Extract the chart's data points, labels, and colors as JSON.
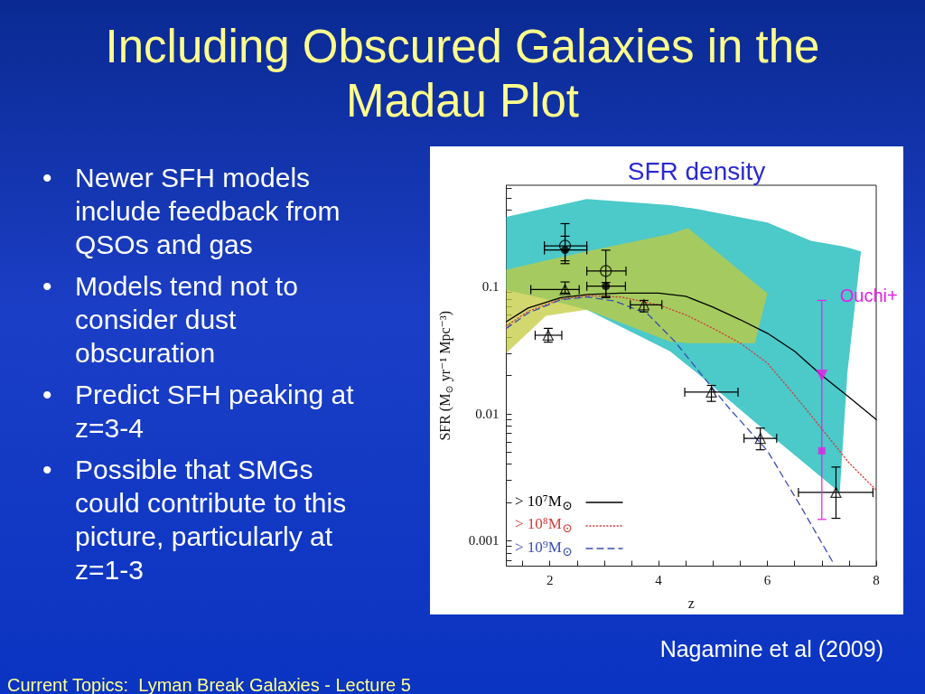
{
  "chart_data": {
    "type": "scatter",
    "title": "Including Obscured Galaxies in the Madau Plot",
    "subtitle": "SFR density",
    "xlabel": "z",
    "ylabel": "SFR (M$_{⊙}$ yr⁻¹ Mpc⁻³)",
    "xlim": [
      1.2,
      8
    ],
    "xticks": [
      {
        "value": 1.5,
        "label": null
      },
      2,
      {
        "value": 2.5,
        "label": null
      },
      {
        "value": 3,
        "label": null
      },
      {
        "value": 3.5,
        "label": null
      },
      4,
      {
        "value": 4.5,
        "label": null
      },
      {
        "value": 5,
        "label": null
      },
      {
        "value": 5.5,
        "label": null
      },
      6,
      {
        "value": 6.5,
        "label": null
      },
      {
        "value": 7,
        "label": null
      },
      {
        "value": 7.5,
        "label": null
      },
      8
    ],
    "ylim": [
      0.00063,
      0.63
    ],
    "yticks": [
      {
        "value": 0.0007,
        "label": null
      },
      {
        "value": 0.0008,
        "label": null
      },
      {
        "value": 0.0009,
        "label": null
      },
      0.001,
      {
        "value": 0.002,
        "label": null
      },
      {
        "value": 0.003,
        "label": null
      },
      {
        "value": 0.004,
        "label": null
      },
      {
        "value": 0.005,
        "label": null
      },
      {
        "value": 0.006,
        "label": null
      },
      {
        "value": 0.007,
        "label": null
      },
      {
        "value": 0.008,
        "label": null
      },
      {
        "value": 0.009,
        "label": null
      },
      0.01,
      {
        "value": 0.02,
        "label": null
      },
      {
        "value": 0.03,
        "label": null
      },
      {
        "value": 0.04,
        "label": null
      },
      {
        "value": 0.05,
        "label": null
      },
      {
        "value": 0.06,
        "label": null
      },
      {
        "value": 0.07,
        "label": null
      },
      {
        "value": 0.08,
        "label": null
      },
      {
        "value": 0.09,
        "label": null
      },
      0.1,
      {
        "value": 0.2,
        "label": null
      },
      {
        "value": 0.3,
        "label": null
      },
      {
        "value": 0.4,
        "label": null
      },
      {
        "value": 0.5,
        "label": null
      },
      {
        "value": 0.6,
        "label": null
      }
    ],
    "log": "y",
    "legend": "bottom left",
    "series": [
      {
        "type": "line",
        "color": "#4cc9c9",
        "x": [
          1.2,
          1.93,
          2.68,
          4.21,
          4.7,
          6.0,
          6.8,
          7.33,
          7.47,
          7.72
        ],
        "values": [
          null,
          null,
          null,
          null,
          null,
          null,
          null,
          null,
          null,
          null
        ],
        "upper": [
          0.355,
          0.416,
          0.49,
          0.44,
          0.41,
          0.32,
          0.23,
          0.21,
          0.204,
          0.19
        ],
        "lower": [
          0.094,
          0.08,
          0.066,
          0.031,
          0.021,
          0.0071,
          0.0037,
          0.0024,
          0.021,
          0.19
        ]
      },
      {
        "type": "line",
        "color": "#c3cb3c",
        "x": [
          1.2,
          1.93,
          2.68,
          4.21,
          4.54,
          5.77,
          6.0
        ],
        "values": [
          null,
          null,
          null,
          null,
          null,
          null,
          null
        ],
        "upper": [
          0.136,
          0.161,
          0.19,
          0.26,
          0.29,
          0.107,
          0.089
        ],
        "lower": [
          0.03,
          0.059,
          0.066,
          0.037,
          0.036,
          0.036,
          0.089
        ]
      },
      {
        "type": "line",
        "name": "> 10⁷M$_{⊙}$",
        "color": "#000000",
        "line_style": "solid",
        "x": [
          1.2,
          1.6,
          2.2,
          2.7,
          3.3,
          4.0,
          4.5,
          5.0,
          5.5,
          6.0,
          6.5,
          7.0,
          7.5,
          8.0
        ],
        "values": [
          0.053,
          0.068,
          0.082,
          0.087,
          0.089,
          0.089,
          0.084,
          0.069,
          0.055,
          0.043,
          0.031,
          0.02,
          0.0135,
          0.009
        ]
      },
      {
        "type": "line",
        "name": "> 10⁸M$_{⊙}$",
        "color": "#d23c3c",
        "line_style": "dotted",
        "x": [
          1.2,
          1.6,
          2.2,
          2.7,
          3.3,
          4.0,
          4.5,
          5.0,
          5.5,
          6.0,
          6.5,
          7.0,
          7.5,
          8.0
        ],
        "values": [
          0.049,
          0.064,
          0.08,
          0.085,
          0.083,
          0.072,
          0.06,
          0.047,
          0.036,
          0.025,
          0.014,
          0.0076,
          0.0041,
          0.0025
        ]
      },
      {
        "type": "line",
        "name": "> 10⁹M$_{⊙}$",
        "color": "#3a4cb4",
        "line_style": "dashed",
        "x": [
          1.2,
          1.6,
          2.2,
          2.7,
          3.2,
          3.8,
          4.3,
          4.8,
          5.3,
          6.0,
          6.6,
          7.2
        ],
        "values": [
          0.047,
          0.062,
          0.079,
          0.083,
          0.077,
          0.061,
          0.037,
          0.02,
          0.011,
          0.0051,
          0.0019,
          0.00068
        ]
      },
      {
        "marker": "circle-open",
        "color": "#000000",
        "x": [
          2.28,
          3.03
        ],
        "values": [
          0.21,
          0.133
        ],
        "errors": [
          [
            0.152,
            0.314
          ],
          [
            0.084,
            0.194
          ]
        ],
        "xerrors": [
          [
            1.9,
            2.68
          ],
          [
            2.68,
            3.4
          ]
        ]
      },
      {
        "marker": "circle",
        "color": "#000000",
        "x": [
          2.28,
          3.03
        ],
        "values": [
          0.195,
          0.101
        ],
        "errors": [
          [
            0.16,
            0.25
          ],
          [
            0.082,
            0.108
          ]
        ],
        "xerrors": [
          [
            1.9,
            2.68
          ],
          [
            2.68,
            3.39
          ]
        ]
      },
      {
        "marker": "triangle-open",
        "color": "#000000",
        "x": [
          2.28,
          3.73,
          1.97,
          4.97,
          5.87,
          7.26
        ],
        "values": [
          0.095,
          0.072,
          0.0415,
          0.0148,
          0.0064,
          0.0024
        ],
        "errors": [
          [
            0.089,
            0.109
          ],
          [
            0.0634,
            0.078
          ],
          [
            0.0366,
            0.047
          ],
          [
            0.0125,
            0.0167
          ],
          [
            0.0052,
            0.0077
          ],
          [
            0.0015,
            0.0038
          ]
        ],
        "xerrors": [
          [
            1.65,
            2.54
          ],
          [
            3.48,
            4.06
          ],
          [
            1.73,
            2.22
          ],
          [
            4.48,
            5.46
          ],
          [
            5.57,
            6.17
          ],
          [
            6.57,
            7.94
          ]
        ]
      },
      {
        "name": "Ouchi+",
        "marker": "triangle-down",
        "color": "#e61ee6",
        "x": [
          7.0
        ],
        "values": [
          0.02
        ],
        "errors": [
          [
            0.00147,
            0.078
          ]
        ]
      },
      {
        "marker": "square",
        "color": "#e61ee6",
        "x": [
          7.0
        ],
        "values": [
          0.0051
        ]
      }
    ],
    "annotations": [
      "• Newer SFH models include feedback from QSOs and gas",
      "• Models tend not to consider dust obscuration",
      "• Predict SFH peaking at z=3-4",
      "• Possible that SMGs could contribute to this picture, particularly at z=1-3",
      "Nagamine et al (2009)",
      "Current Topics:  Lyman Break Galaxies - Lecture 5"
    ]
  }
}
